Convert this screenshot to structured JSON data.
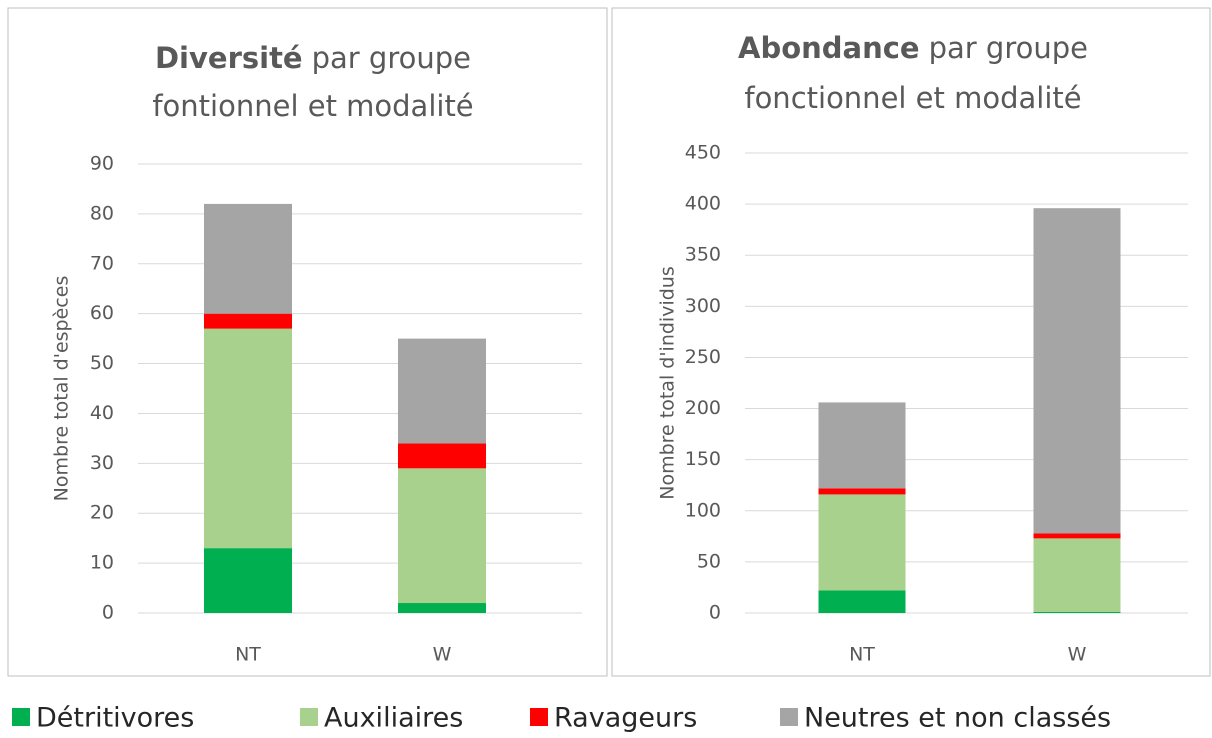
{
  "chart_data": [
    {
      "type": "stacked_bar",
      "title_bold": "Diversité",
      "title_lines": [
        "par groupe",
        "fontionnel et modalité"
      ],
      "ylabel": "Nombre total d'espèces",
      "categories": [
        "NT",
        "W"
      ],
      "series": [
        {
          "name": "Détritivores",
          "color": "#00b050",
          "values": [
            13,
            2
          ]
        },
        {
          "name": "Auxiliaires",
          "color": "#a9d18e",
          "values": [
            44,
            27
          ]
        },
        {
          "name": "Ravageurs",
          "color": "#ff0000",
          "values": [
            3,
            5
          ]
        },
        {
          "name": "Neutres et non classés",
          "color": "#a5a5a5",
          "values": [
            22,
            21
          ]
        }
      ],
      "ylim": [
        0,
        90
      ],
      "yticks": [
        0,
        10,
        20,
        30,
        40,
        50,
        60,
        70,
        80,
        90
      ],
      "grid": true
    },
    {
      "type": "stacked_bar",
      "title_bold": "Abondance",
      "title_lines": [
        "par groupe",
        "fonctionnel et modalité"
      ],
      "ylabel": "Nombre total d'individus",
      "categories": [
        "NT",
        "W"
      ],
      "series": [
        {
          "name": "Détritivores",
          "color": "#00b050",
          "values": [
            22,
            1
          ]
        },
        {
          "name": "Auxiliaires",
          "color": "#a9d18e",
          "values": [
            94,
            72
          ]
        },
        {
          "name": "Ravageurs",
          "color": "#ff0000",
          "values": [
            6,
            5
          ]
        },
        {
          "name": "Neutres et non classés",
          "color": "#a5a5a5",
          "values": [
            84,
            318
          ]
        }
      ],
      "ylim": [
        0,
        450
      ],
      "yticks": [
        0,
        50,
        100,
        150,
        200,
        250,
        300,
        350,
        400,
        450
      ],
      "grid": true
    }
  ]
}
